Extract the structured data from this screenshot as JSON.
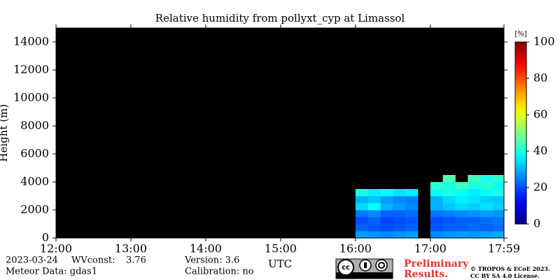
{
  "chart_data": {
    "type": "heatmap",
    "title": "Relative humidity from pollyxt_cyp at Limassol",
    "x_label": "UTC",
    "y_label": "Height (m)",
    "xlim": [
      720,
      1079
    ],
    "xticks": [
      {
        "value": 720,
        "label": "12:00"
      },
      {
        "value": 780,
        "label": "13:00"
      },
      {
        "value": 840,
        "label": "14:00"
      },
      {
        "value": 900,
        "label": "15:00"
      },
      {
        "value": 960,
        "label": "16:00"
      },
      {
        "value": 1020,
        "label": "17:00"
      },
      {
        "value": 1079,
        "label": "17:59"
      }
    ],
    "ylim": [
      0,
      15000
    ],
    "yticks": [
      0,
      2000,
      4000,
      6000,
      8000,
      10000,
      12000,
      14000
    ],
    "x_edges": [
      960,
      970,
      980,
      990,
      1000,
      1010,
      1020,
      1030,
      1040,
      1050,
      1060,
      1070,
      1079
    ],
    "y_edges": [
      0,
      500,
      1000,
      1500,
      2000,
      2500,
      3000,
      3500,
      4000,
      4500
    ],
    "z": [
      [
        28,
        27,
        26,
        27,
        28,
        null,
        26,
        27,
        28,
        27,
        28,
        29
      ],
      [
        22,
        21,
        20,
        21,
        22,
        null,
        21,
        22,
        22,
        23,
        22,
        23
      ],
      [
        20,
        22,
        19,
        20,
        21,
        null,
        20,
        21,
        22,
        22,
        23,
        24
      ],
      [
        24,
        26,
        22,
        22,
        23,
        null,
        24,
        25,
        26,
        27,
        28,
        27
      ],
      [
        34,
        38,
        30,
        28,
        26,
        null,
        30,
        32,
        34,
        33,
        35,
        33
      ],
      [
        30,
        32,
        28,
        26,
        25,
        null,
        30,
        34,
        36,
        35,
        33,
        32
      ],
      [
        40,
        36,
        38,
        35,
        36,
        null,
        38,
        40,
        38,
        36,
        38,
        40
      ],
      [
        null,
        null,
        null,
        null,
        null,
        null,
        42,
        40,
        44,
        40,
        42,
        38
      ],
      [
        null,
        null,
        null,
        null,
        null,
        null,
        null,
        45,
        null,
        44,
        40,
        42
      ]
    ],
    "colormap": "jet",
    "clim": [
      0,
      100
    ],
    "cticks": [
      0,
      20,
      40,
      60,
      80,
      100
    ],
    "colorbar_label": "[%]",
    "background": "#000000"
  },
  "footer": {
    "date": "2023-03-24",
    "wvconst_label": "WVconst:",
    "wvconst": "3.76",
    "meteor": "Meteor Data: gdas1",
    "version": "Version: 3.6",
    "calibration": "Calibration: no",
    "preliminary_1": "Preliminary",
    "preliminary_2": "Results.",
    "copyright_1": "© TROPOS & ECoE 2023.",
    "copyright_2": "CC BY SA 4.0 License."
  }
}
